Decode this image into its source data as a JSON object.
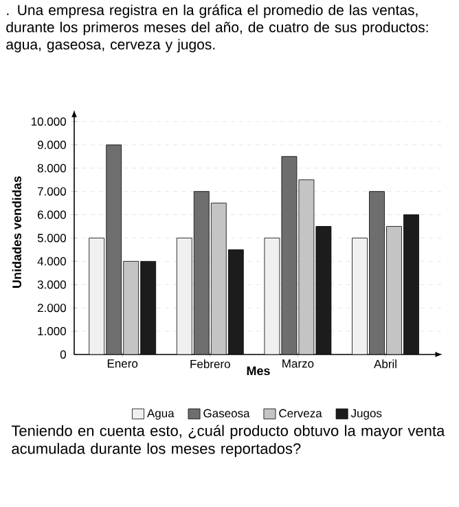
{
  "chart_data": {
    "type": "bar",
    "title": ". Una empresa registra en la gráfica el promedio de las ventas, durante los primeros meses del año, de cuatro de sus productos: agua, gaseosa, cerveza y jugos.",
    "xlabel": "Mes",
    "ylabel": "Unidades vendidas",
    "categories": [
      "Enero",
      "Febrero",
      "Marzo",
      "Abril"
    ],
    "series": [
      {
        "name": "Agua",
        "color": "#f0f0f0",
        "values": [
          5000,
          5000,
          5000,
          5000
        ]
      },
      {
        "name": "Gaseosa",
        "color": "#6e6e6e",
        "values": [
          9000,
          7000,
          8500,
          7000
        ]
      },
      {
        "name": "Cerveza",
        "color": "#c4c4c4",
        "values": [
          4000,
          6500,
          7500,
          5500
        ]
      },
      {
        "name": "Jugos",
        "color": "#1c1c1c",
        "values": [
          4000,
          4500,
          5500,
          6000
        ]
      }
    ],
    "ylim": [
      0,
      10000
    ],
    "yticks": [
      0,
      {
        "value": 1000,
        "label": "1.000"
      },
      {
        "value": 2000,
        "label": "2.000"
      },
      {
        "value": 3000,
        "label": "3.000"
      },
      {
        "value": 4000,
        "label": "4.000"
      },
      {
        "value": 5000,
        "label": "5.000"
      },
      {
        "value": 6000,
        "label": "6.000"
      },
      {
        "value": 7000,
        "label": "7.000"
      },
      {
        "value": 8000,
        "label": "8.000"
      },
      {
        "value": 9000,
        "label": "9.000"
      },
      {
        "value": 10000,
        "label": "10.000"
      }
    ],
    "grid": "y",
    "legend": "bottom",
    "annotations": [
      "Teniendo en cuenta esto, ¿cuál producto obtuvo la mayor venta acumulada durante los meses reportados?"
    ]
  }
}
